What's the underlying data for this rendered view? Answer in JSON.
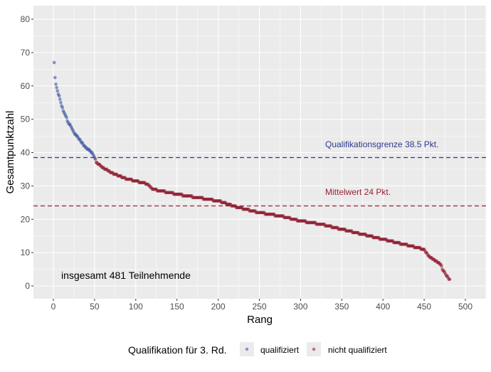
{
  "chart_data": {
    "type": "scatter",
    "xlabel": "Rang",
    "ylabel": "Gesamtpunktzahl",
    "xlim": [
      -12,
      525
    ],
    "ylim": [
      -4,
      84
    ],
    "xticks": [
      0,
      50,
      100,
      150,
      200,
      250,
      300,
      350,
      400,
      450,
      500
    ],
    "yticks": [
      0,
      10,
      20,
      30,
      40,
      50,
      60,
      70,
      80
    ],
    "grid": true,
    "n_points": 481,
    "points_sampled": [
      [
        1,
        67
      ],
      [
        2,
        62.5
      ],
      [
        3,
        60.5
      ],
      [
        5,
        58.5
      ],
      [
        6,
        57.5
      ],
      [
        8,
        56
      ],
      [
        10,
        54
      ],
      [
        12,
        52.5
      ],
      [
        15,
        51
      ],
      [
        18,
        49
      ],
      [
        22,
        47.5
      ],
      [
        25,
        46
      ],
      [
        30,
        44.5
      ],
      [
        33,
        43.5
      ],
      [
        37,
        42
      ],
      [
        42,
        41
      ],
      [
        47,
        40
      ],
      [
        50,
        38.5
      ],
      [
        52,
        37
      ],
      [
        60,
        35.5
      ],
      [
        70,
        34
      ],
      [
        80,
        33
      ],
      [
        90,
        32
      ],
      [
        100,
        31.5
      ],
      [
        115,
        30.5
      ],
      [
        120,
        29
      ],
      [
        150,
        27.5
      ],
      [
        175,
        26.5
      ],
      [
        200,
        25.5
      ],
      [
        225,
        23.5
      ],
      [
        250,
        22
      ],
      [
        275,
        21
      ],
      [
        300,
        19.5
      ],
      [
        325,
        18.5
      ],
      [
        350,
        17
      ],
      [
        375,
        15.5
      ],
      [
        400,
        14
      ],
      [
        425,
        12.5
      ],
      [
        450,
        11
      ],
      [
        455,
        9
      ],
      [
        470,
        6.5
      ],
      [
        472,
        5
      ],
      [
        480,
        2
      ]
    ],
    "reference_lines": [
      {
        "y": 38.5,
        "label": "Qualifikationsgrenze 38.5 Pkt.",
        "color": "#2b3a8f"
      },
      {
        "y": 24,
        "label": "Mittelwert 24 Pkt.",
        "color": "#9a2233"
      }
    ],
    "annotation": "insgesamt 481 Teilnehmende",
    "threshold": 38.5,
    "legend": {
      "title": "Qualifikation für 3. Rd.",
      "placement": "bottom",
      "entries": [
        {
          "label": "qualifiziert",
          "color": "#3a56a0"
        },
        {
          "label": "nicht qualifiziert",
          "color": "#8e1c30"
        }
      ]
    }
  }
}
